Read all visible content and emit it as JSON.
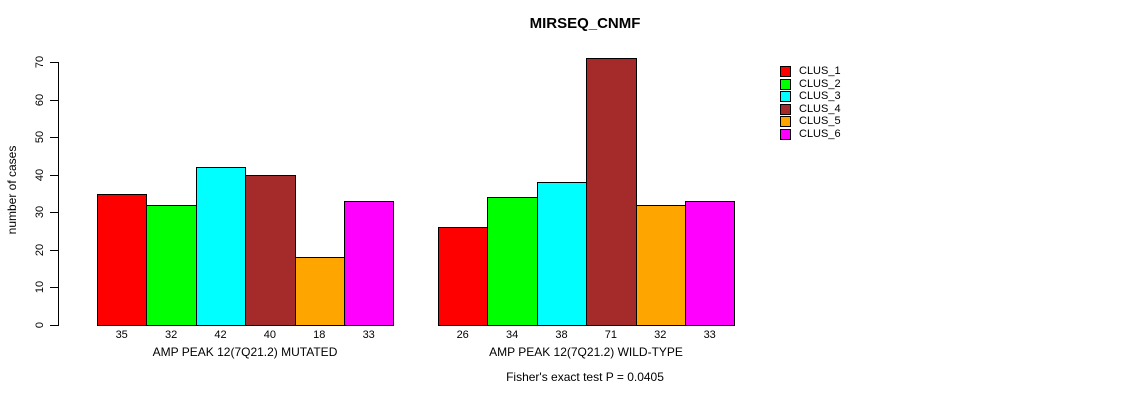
{
  "chart_data": {
    "type": "bar",
    "title": "MIRSEQ_CNMF",
    "ylabel": "number of cases",
    "ylim": [
      0,
      70
    ],
    "yticks": [
      0,
      10,
      20,
      30,
      40,
      50,
      60,
      70
    ],
    "grid": false,
    "bar_value_labels": true,
    "groups": [
      {
        "label": "AMP PEAK 12(7Q21.2) MUTATED",
        "values": [
          35,
          32,
          42,
          40,
          18,
          33
        ]
      },
      {
        "label": "AMP PEAK 12(7Q21.2) WILD-TYPE",
        "values": [
          26,
          34,
          38,
          71,
          32,
          33
        ]
      }
    ],
    "legend": {
      "position": "right",
      "entries": [
        {
          "name": "CLUS_1",
          "color": "#FF0000"
        },
        {
          "name": "CLUS_2",
          "color": "#00FF00"
        },
        {
          "name": "CLUS_3",
          "color": "#00FFFF"
        },
        {
          "name": "CLUS_4",
          "color": "#A52A2A"
        },
        {
          "name": "CLUS_5",
          "color": "#FFA500"
        },
        {
          "name": "CLUS_6",
          "color": "#FF00FF"
        }
      ]
    },
    "footnote": "Fisher's exact test P = 0.0405"
  }
}
